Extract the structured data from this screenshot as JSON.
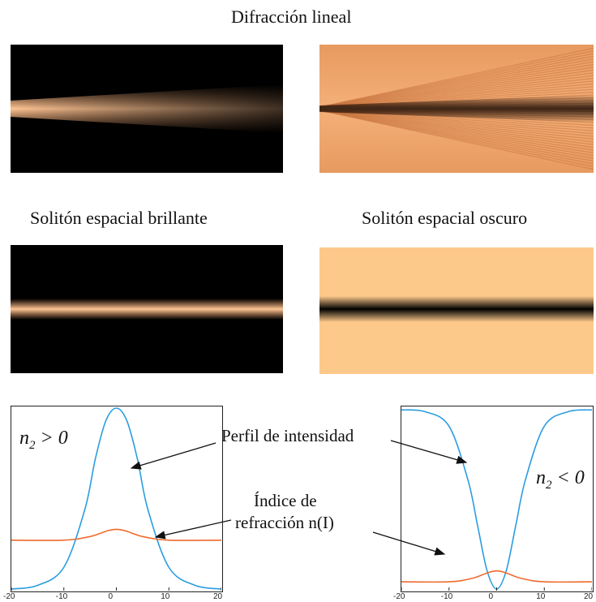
{
  "titles": {
    "linear_diffraction": "Difracción lineal",
    "bright_soliton": "Solitón espacial brillante",
    "dark_soliton": "Solitón espacial oscuro"
  },
  "colors": {
    "beam_bright": "#f2a26a",
    "beam_bg_dark": "#000000",
    "dark_soliton_bg": "#fcc98a",
    "intensity_curve": "#2a9de0",
    "index_curve": "#ef6a2c"
  },
  "labels": {
    "intensity_profile": "Perfil de intensidad",
    "index_line1": "Índice de",
    "index_line2": "refracción n(I)",
    "n2_positive_prefix": "n",
    "n2_positive_sub": "2",
    "n2_positive_suffix": " > 0",
    "n2_negative_prefix": "n",
    "n2_negative_sub": "2",
    "n2_negative_suffix": " < 0"
  },
  "chart_data": [
    {
      "type": "line",
      "x_ticks": [
        "-20",
        "-10",
        "0",
        "10",
        "20"
      ],
      "xlim": [
        -20,
        20
      ],
      "ylim": [
        0,
        1
      ],
      "series": [
        {
          "kind": "intensity",
          "shape": "bright",
          "x": [
            -20,
            -15,
            -10,
            -6,
            -4,
            -2,
            0,
            2,
            4,
            6,
            10,
            15,
            20
          ],
          "values": [
            0.0,
            0.02,
            0.12,
            0.44,
            0.72,
            0.93,
            1.0,
            0.93,
            0.72,
            0.44,
            0.12,
            0.02,
            0.0
          ]
        },
        {
          "kind": "index",
          "shape": "bump",
          "x": [
            -20,
            -10,
            -5,
            0,
            5,
            10,
            20
          ],
          "values": [
            0.27,
            0.27,
            0.29,
            0.33,
            0.29,
            0.27,
            0.27
          ]
        }
      ]
    },
    {
      "type": "line",
      "x_ticks": [
        "-20",
        "-10",
        "0",
        "10",
        "20"
      ],
      "xlim": [
        -20,
        20
      ],
      "ylim": [
        0,
        1
      ],
      "series": [
        {
          "kind": "intensity",
          "shape": "dark",
          "x": [
            -20,
            -15,
            -10,
            -6,
            -4,
            -2,
            0,
            2,
            4,
            6,
            10,
            15,
            20
          ],
          "values": [
            0.99,
            0.98,
            0.9,
            0.6,
            0.35,
            0.1,
            0.0,
            0.1,
            0.35,
            0.6,
            0.9,
            0.98,
            0.99
          ]
        },
        {
          "kind": "index",
          "shape": "bump",
          "x": [
            -20,
            -10,
            -5,
            0,
            5,
            10,
            20
          ],
          "values": [
            0.04,
            0.04,
            0.06,
            0.1,
            0.06,
            0.04,
            0.04
          ]
        }
      ]
    }
  ]
}
